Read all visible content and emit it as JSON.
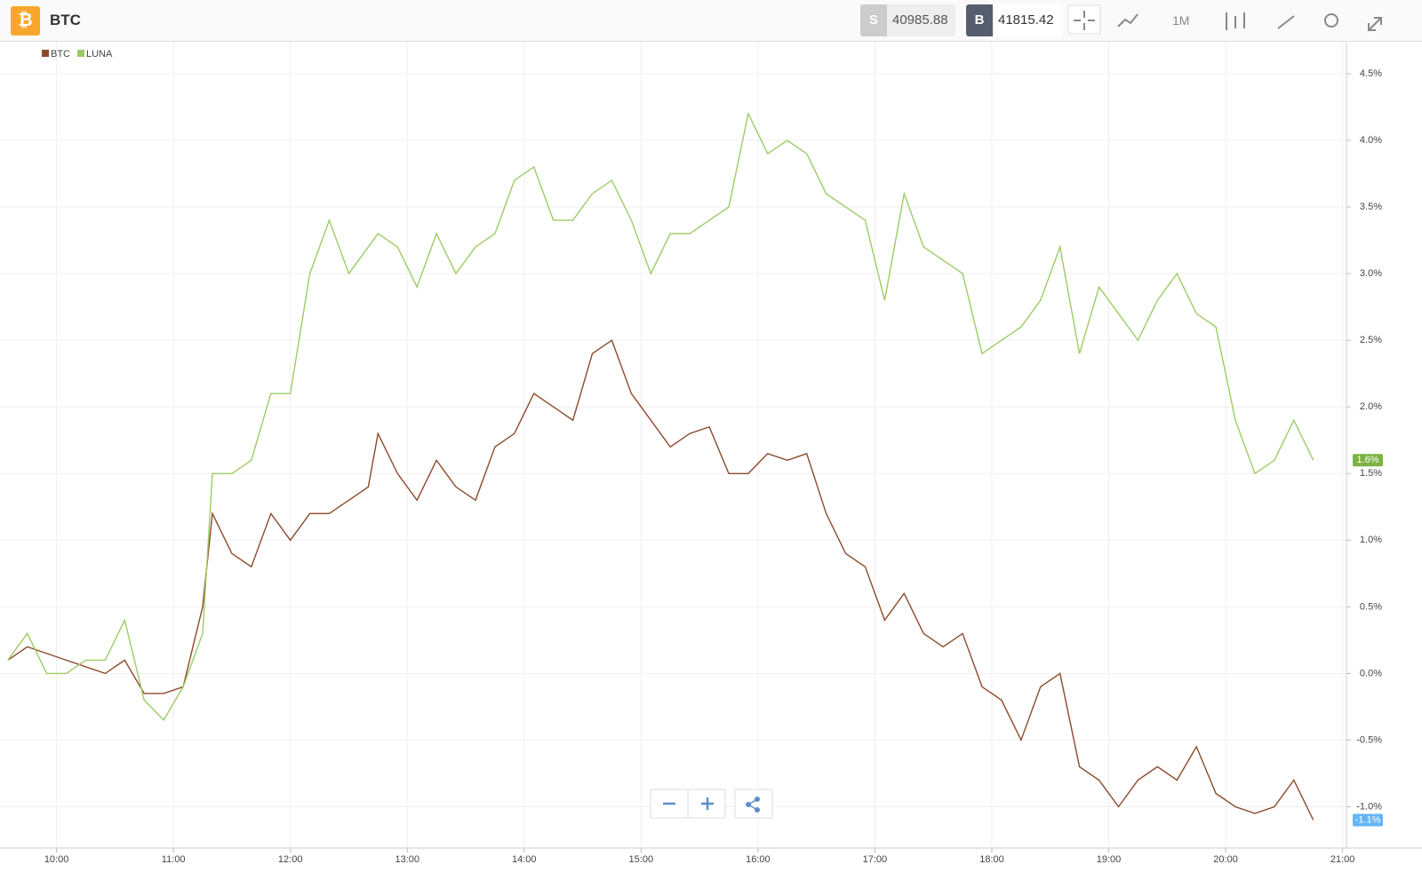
{
  "header": {
    "title": "BTC",
    "sell_label": "S",
    "sell_price": "40985.88",
    "buy_label": "B",
    "buy_price": "41815.42",
    "timeframe": "1M"
  },
  "chart_data": {
    "type": "line",
    "x": [
      "09:35",
      "09:45",
      "09:55",
      "10:05",
      "10:15",
      "10:25",
      "10:35",
      "10:45",
      "10:55",
      "11:05",
      "11:15",
      "11:20",
      "11:30",
      "11:40",
      "11:50",
      "12:00",
      "12:10",
      "12:20",
      "12:30",
      "12:40",
      "12:45",
      "12:55",
      "13:05",
      "13:15",
      "13:25",
      "13:35",
      "13:45",
      "13:55",
      "14:05",
      "14:15",
      "14:25",
      "14:35",
      "14:45",
      "14:55",
      "15:05",
      "15:15",
      "15:25",
      "15:35",
      "15:45",
      "15:55",
      "16:05",
      "16:15",
      "16:25",
      "16:35",
      "16:45",
      "16:55",
      "17:05",
      "17:15",
      "17:25",
      "17:35",
      "17:45",
      "17:55",
      "18:05",
      "18:15",
      "18:25",
      "18:35",
      "18:45",
      "18:55",
      "19:05",
      "19:15",
      "19:25",
      "19:35",
      "19:45",
      "19:55",
      "20:05",
      "20:15",
      "20:25",
      "20:35",
      "20:45"
    ],
    "series": [
      {
        "name": "BTC",
        "color": "#8b4a2b",
        "values": [
          0.1,
          0.2,
          0.15,
          0.1,
          0.05,
          0.0,
          0.1,
          -0.15,
          -0.15,
          -0.1,
          0.5,
          1.2,
          0.9,
          0.8,
          1.2,
          1.0,
          1.2,
          1.2,
          1.3,
          1.4,
          1.8,
          1.5,
          1.3,
          1.6,
          1.4,
          1.3,
          1.7,
          1.8,
          2.1,
          2.0,
          1.9,
          2.4,
          2.5,
          2.1,
          1.9,
          1.7,
          1.8,
          1.85,
          1.5,
          1.5,
          1.65,
          1.6,
          1.65,
          1.2,
          0.9,
          0.8,
          0.4,
          0.6,
          0.3,
          0.2,
          0.3,
          -0.1,
          -0.2,
          -0.5,
          -0.1,
          0.0,
          -0.7,
          -0.8,
          -1.0,
          -0.8,
          -0.7,
          -0.8,
          -0.55,
          -0.9,
          -1.0,
          -1.05,
          -1.0,
          -0.8,
          -1.1
        ]
      },
      {
        "name": "LUNA",
        "color": "#9ccc65",
        "values": [
          0.1,
          0.3,
          0.0,
          0.0,
          0.1,
          0.1,
          0.4,
          -0.2,
          -0.35,
          -0.1,
          0.3,
          1.5,
          1.5,
          1.6,
          2.1,
          2.1,
          3.0,
          3.4,
          3.0,
          3.2,
          3.3,
          3.2,
          2.9,
          3.3,
          3.0,
          3.2,
          3.3,
          3.7,
          3.8,
          3.4,
          3.4,
          3.6,
          3.7,
          3.4,
          3.0,
          3.3,
          3.3,
          3.4,
          3.5,
          4.2,
          3.9,
          4.0,
          3.9,
          3.6,
          3.5,
          3.4,
          2.8,
          3.6,
          3.2,
          3.1,
          3.0,
          2.4,
          2.5,
          2.6,
          2.8,
          3.2,
          2.4,
          2.9,
          2.7,
          2.5,
          2.8,
          3.0,
          2.7,
          2.6,
          1.9,
          1.5,
          1.6,
          1.9,
          1.6
        ]
      }
    ],
    "badges": [
      {
        "value": 1.6,
        "label": "1.6%",
        "color": "#7cb342"
      },
      {
        "value": -1.1,
        "label": "-1.1%",
        "color": "#64b5f6"
      }
    ],
    "xlim": [
      "09:31",
      "21:02"
    ],
    "xticks": [
      "10:00",
      "11:00",
      "12:00",
      "13:00",
      "14:00",
      "15:00",
      "16:00",
      "17:00",
      "18:00",
      "19:00",
      "20:00",
      "21:00"
    ],
    "ylim": [
      -1.31,
      4.74
    ],
    "yticks": [
      {
        "value": -1.0,
        "label": "-1.0%"
      },
      {
        "value": -0.5,
        "label": "-0.5%"
      },
      {
        "value": 0.0,
        "label": "0.0%"
      },
      {
        "value": 0.5,
        "label": "0.5%"
      },
      {
        "value": 1.0,
        "label": "1.0%"
      },
      {
        "value": 1.5,
        "label": "1.5%"
      },
      {
        "value": 2.0,
        "label": "2.0%"
      },
      {
        "value": 2.5,
        "label": "2.5%"
      },
      {
        "value": 3.0,
        "label": "3.0%"
      },
      {
        "value": 3.5,
        "label": "3.5%"
      },
      {
        "value": 4.0,
        "label": "4.0%"
      },
      {
        "value": 4.5,
        "label": "4.5%"
      }
    ],
    "grid": true
  }
}
